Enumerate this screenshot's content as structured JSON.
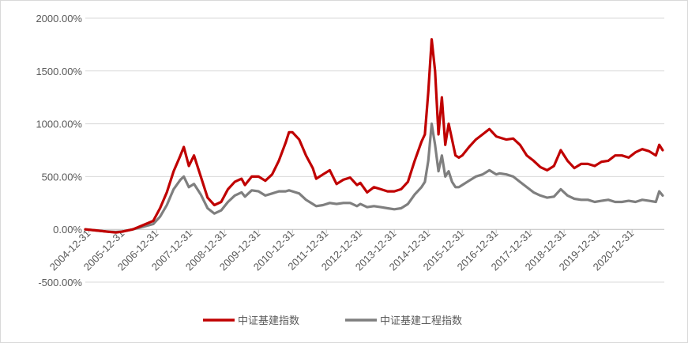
{
  "chart_data": {
    "type": "line",
    "title": "",
    "xlabel": "",
    "ylabel": "",
    "ylim": [
      -500,
      2000
    ],
    "yticks": [
      -500,
      0,
      500,
      1000,
      1500,
      2000
    ],
    "ytick_labels": [
      "-500.00%",
      "0.00%",
      "500.00%",
      "1000.00%",
      "1500.00%",
      "2000.00%"
    ],
    "x_range": [
      2004.9,
      2021.95
    ],
    "xtick_labels": [
      "2004-12-31",
      "2005-12-31",
      "2006-12-31",
      "2007-12-31",
      "2008-12-31",
      "2009-12-31",
      "2010-12-31",
      "2011-12-31",
      "2012-12-31",
      "2013-12-31",
      "2014-12-31",
      "2015-12-31",
      "2016-12-31",
      "2017-12-31",
      "2018-12-31",
      "2019-12-31",
      "2020-12-31"
    ],
    "grid": "horizontal",
    "legend_position": "bottom",
    "series": [
      {
        "name": "中证基建指数",
        "color": "#c00000",
        "x": [
          2004.9,
          2005.2,
          2005.5,
          2005.8,
          2006.0,
          2006.3,
          2006.6,
          2006.9,
          2007.1,
          2007.3,
          2007.5,
          2007.7,
          2007.8,
          2007.95,
          2008.1,
          2008.3,
          2008.5,
          2008.7,
          2008.9,
          2009.1,
          2009.3,
          2009.5,
          2009.6,
          2009.8,
          2010.0,
          2010.2,
          2010.4,
          2010.6,
          2010.8,
          2010.9,
          2011.0,
          2011.2,
          2011.4,
          2011.6,
          2011.7,
          2011.9,
          2012.1,
          2012.3,
          2012.5,
          2012.7,
          2012.9,
          2013.0,
          2013.2,
          2013.4,
          2013.6,
          2013.8,
          2014.0,
          2014.2,
          2014.4,
          2014.6,
          2014.8,
          2014.9,
          2015.0,
          2015.1,
          2015.2,
          2015.3,
          2015.4,
          2015.5,
          2015.6,
          2015.7,
          2015.8,
          2015.9,
          2016.0,
          2016.2,
          2016.4,
          2016.6,
          2016.8,
          2017.0,
          2017.1,
          2017.3,
          2017.5,
          2017.7,
          2017.9,
          2018.1,
          2018.3,
          2018.5,
          2018.7,
          2018.9,
          2019.1,
          2019.3,
          2019.5,
          2019.7,
          2019.9,
          2020.1,
          2020.3,
          2020.5,
          2020.7,
          2020.9,
          2021.1,
          2021.3,
          2021.5,
          2021.7,
          2021.8,
          2021.9
        ],
        "y": [
          0,
          -10,
          -20,
          -30,
          -20,
          0,
          40,
          80,
          200,
          350,
          550,
          700,
          780,
          600,
          700,
          500,
          300,
          230,
          260,
          380,
          450,
          480,
          420,
          500,
          500,
          460,
          520,
          650,
          820,
          920,
          920,
          850,
          700,
          580,
          480,
          520,
          560,
          430,
          470,
          490,
          420,
          440,
          350,
          400,
          380,
          360,
          360,
          380,
          450,
          650,
          830,
          900,
          1300,
          1800,
          1500,
          900,
          1250,
          800,
          1000,
          850,
          700,
          680,
          700,
          780,
          850,
          900,
          950,
          880,
          870,
          850,
          860,
          800,
          700,
          650,
          590,
          560,
          600,
          750,
          650,
          580,
          620,
          620,
          600,
          640,
          650,
          700,
          700,
          680,
          730,
          760,
          740,
          700,
          800,
          750
        ]
      },
      {
        "name": "中证基建工程指数",
        "color": "#7f7f7f",
        "x": [
          2004.9,
          2005.2,
          2005.5,
          2005.8,
          2006.0,
          2006.3,
          2006.6,
          2006.9,
          2007.1,
          2007.3,
          2007.5,
          2007.7,
          2007.8,
          2007.95,
          2008.1,
          2008.3,
          2008.5,
          2008.7,
          2008.9,
          2009.1,
          2009.3,
          2009.5,
          2009.6,
          2009.8,
          2010.0,
          2010.2,
          2010.4,
          2010.6,
          2010.8,
          2010.9,
          2011.0,
          2011.2,
          2011.4,
          2011.6,
          2011.7,
          2011.9,
          2012.1,
          2012.3,
          2012.5,
          2012.7,
          2012.9,
          2013.0,
          2013.2,
          2013.4,
          2013.6,
          2013.8,
          2014.0,
          2014.2,
          2014.4,
          2014.6,
          2014.8,
          2014.9,
          2015.0,
          2015.1,
          2015.2,
          2015.3,
          2015.4,
          2015.5,
          2015.6,
          2015.7,
          2015.8,
          2015.9,
          2016.0,
          2016.2,
          2016.4,
          2016.6,
          2016.8,
          2017.0,
          2017.1,
          2017.3,
          2017.5,
          2017.7,
          2017.9,
          2018.1,
          2018.3,
          2018.5,
          2018.7,
          2018.9,
          2019.1,
          2019.3,
          2019.5,
          2019.7,
          2019.9,
          2020.1,
          2020.3,
          2020.5,
          2020.7,
          2020.9,
          2021.1,
          2021.3,
          2021.5,
          2021.7,
          2021.8,
          2021.9
        ],
        "y": [
          0,
          -10,
          -20,
          -25,
          -20,
          0,
          25,
          50,
          120,
          230,
          380,
          470,
          500,
          400,
          430,
          330,
          200,
          150,
          180,
          260,
          320,
          350,
          310,
          370,
          360,
          320,
          340,
          360,
          360,
          370,
          360,
          340,
          280,
          240,
          220,
          230,
          250,
          240,
          250,
          250,
          220,
          240,
          210,
          220,
          210,
          200,
          190,
          200,
          240,
          330,
          400,
          450,
          650,
          1000,
          800,
          550,
          700,
          500,
          550,
          450,
          400,
          400,
          420,
          460,
          500,
          520,
          560,
          520,
          530,
          520,
          500,
          450,
          400,
          350,
          320,
          300,
          310,
          380,
          320,
          290,
          280,
          280,
          260,
          270,
          280,
          260,
          260,
          270,
          260,
          280,
          270,
          260,
          360,
          320
        ]
      }
    ]
  }
}
